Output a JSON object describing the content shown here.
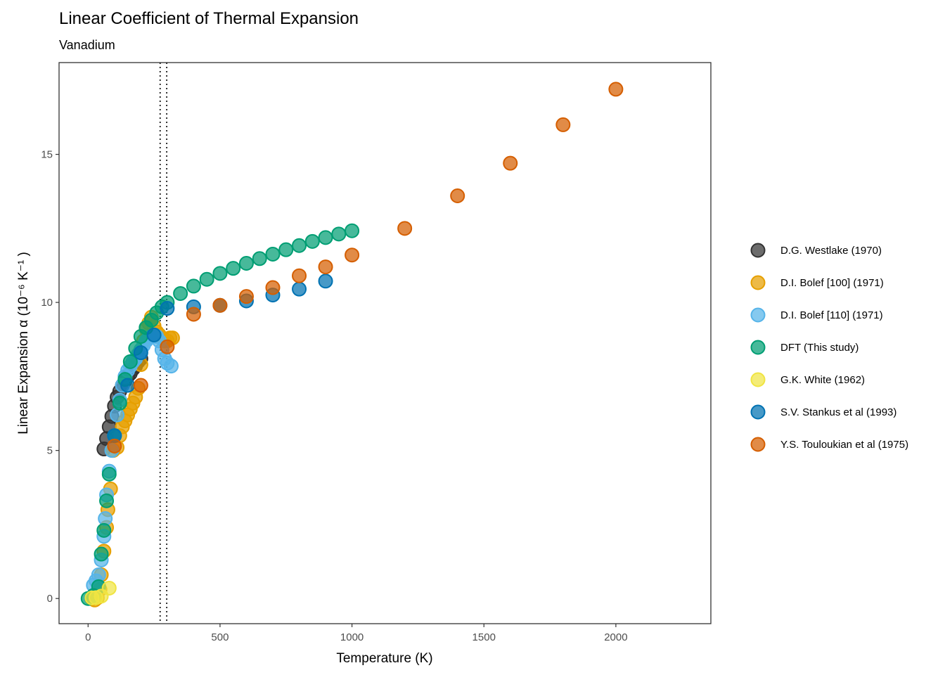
{
  "chart_data": {
    "type": "scatter",
    "title": "Linear Coefficient of Thermal Expansion",
    "subtitle": "Vanadium",
    "xlabel": "Temperature (K)",
    "ylabel": "Linear Expansion  α (10⁻⁶ K⁻¹ )",
    "xlim": [
      -110,
      2360
    ],
    "ylim": [
      -0.85,
      18.1
    ],
    "x_ticks": [
      0,
      500,
      1000,
      1500,
      2000
    ],
    "y_ticks": [
      0,
      5,
      10,
      15
    ],
    "grid": false,
    "legend_position": "right",
    "reference_lines": [
      {
        "x": 273,
        "style": "dotted"
      },
      {
        "x": 298,
        "style": "dotted"
      }
    ],
    "series": [
      {
        "name": "D.G. Westlake (1970)",
        "color": "#333333",
        "points": [
          [
            60,
            5.05
          ],
          [
            70,
            5.4
          ],
          [
            80,
            5.8
          ],
          [
            90,
            6.15
          ],
          [
            100,
            6.5
          ],
          [
            110,
            6.8
          ],
          [
            120,
            7.0
          ],
          [
            130,
            7.2
          ],
          [
            140,
            7.35
          ],
          [
            150,
            7.5
          ],
          [
            160,
            7.6
          ],
          [
            170,
            7.75
          ],
          [
            180,
            7.85
          ],
          [
            190,
            8.0
          ],
          [
            200,
            8.1
          ]
        ]
      },
      {
        "name": "D.I. Bolef [100] (1971)",
        "color": "#E69F00",
        "points": [
          [
            15,
            0.0
          ],
          [
            25,
            -0.05
          ],
          [
            35,
            0.02
          ],
          [
            45,
            0.3
          ],
          [
            50,
            0.8
          ],
          [
            60,
            1.6
          ],
          [
            70,
            2.4
          ],
          [
            75,
            3.0
          ],
          [
            85,
            3.7
          ],
          [
            95,
            5.0
          ],
          [
            110,
            5.1
          ],
          [
            120,
            5.5
          ],
          [
            130,
            5.8
          ],
          [
            140,
            6.0
          ],
          [
            150,
            6.2
          ],
          [
            160,
            6.4
          ],
          [
            170,
            6.6
          ],
          [
            180,
            6.8
          ],
          [
            190,
            7.1
          ],
          [
            200,
            7.9
          ],
          [
            210,
            8.7
          ],
          [
            220,
            9.1
          ],
          [
            230,
            9.3
          ],
          [
            240,
            9.5
          ],
          [
            250,
            9.2
          ],
          [
            260,
            9.0
          ],
          [
            270,
            8.9
          ],
          [
            280,
            8.8
          ],
          [
            290,
            8.7
          ],
          [
            300,
            8.7
          ],
          [
            310,
            8.8
          ],
          [
            320,
            8.8
          ]
        ]
      },
      {
        "name": "D.I. Bolef [110] (1971)",
        "color": "#56B4E9",
        "points": [
          [
            20,
            0.45
          ],
          [
            30,
            0.6
          ],
          [
            40,
            0.8
          ],
          [
            50,
            1.3
          ],
          [
            60,
            2.1
          ],
          [
            65,
            2.7
          ],
          [
            70,
            3.5
          ],
          [
            80,
            4.3
          ],
          [
            90,
            5.0
          ],
          [
            100,
            5.5
          ],
          [
            110,
            6.2
          ],
          [
            120,
            6.7
          ],
          [
            130,
            7.2
          ],
          [
            140,
            7.5
          ],
          [
            150,
            7.7
          ],
          [
            160,
            7.85
          ],
          [
            170,
            8.0
          ],
          [
            180,
            8.1
          ],
          [
            190,
            8.25
          ],
          [
            200,
            8.4
          ],
          [
            210,
            8.55
          ],
          [
            220,
            8.7
          ],
          [
            230,
            8.8
          ],
          [
            240,
            8.85
          ],
          [
            250,
            8.9
          ],
          [
            260,
            8.85
          ],
          [
            270,
            8.7
          ],
          [
            280,
            8.4
          ],
          [
            290,
            8.1
          ],
          [
            300,
            7.95
          ],
          [
            315,
            7.85
          ]
        ]
      },
      {
        "name": "DFT (This study)",
        "color": "#009E73",
        "points": [
          [
            0,
            0.0
          ],
          [
            20,
            0.1
          ],
          [
            40,
            0.4
          ],
          [
            50,
            1.5
          ],
          [
            60,
            2.3
          ],
          [
            70,
            3.3
          ],
          [
            80,
            4.2
          ],
          [
            100,
            5.5
          ],
          [
            120,
            6.6
          ],
          [
            140,
            7.4
          ],
          [
            160,
            8.0
          ],
          [
            180,
            8.45
          ],
          [
            200,
            8.85
          ],
          [
            220,
            9.15
          ],
          [
            240,
            9.4
          ],
          [
            260,
            9.65
          ],
          [
            280,
            9.85
          ],
          [
            300,
            10.0
          ],
          [
            350,
            10.3
          ],
          [
            400,
            10.55
          ],
          [
            450,
            10.78
          ],
          [
            500,
            10.98
          ],
          [
            550,
            11.15
          ],
          [
            600,
            11.32
          ],
          [
            650,
            11.48
          ],
          [
            700,
            11.63
          ],
          [
            750,
            11.78
          ],
          [
            800,
            11.92
          ],
          [
            850,
            12.06
          ],
          [
            900,
            12.19
          ],
          [
            950,
            12.31
          ],
          [
            1000,
            12.42
          ]
        ]
      },
      {
        "name": "G.K. White (1962)",
        "color": "#F0E442",
        "points": [
          [
            15,
            0.02
          ],
          [
            30,
            0.03
          ],
          [
            50,
            0.08
          ],
          [
            80,
            0.35
          ]
        ]
      },
      {
        "name": "S.V. Stankus et al (1993)",
        "color": "#0072B2",
        "points": [
          [
            100,
            5.5
          ],
          [
            150,
            7.2
          ],
          [
            200,
            8.3
          ],
          [
            250,
            8.9
          ],
          [
            300,
            9.8
          ],
          [
            400,
            9.85
          ],
          [
            500,
            9.9
          ],
          [
            600,
            10.05
          ],
          [
            700,
            10.25
          ],
          [
            800,
            10.45
          ],
          [
            900,
            10.72
          ]
        ]
      },
      {
        "name": "Y.S. Touloukian et al (1975)",
        "color": "#D55E00",
        "points": [
          [
            100,
            5.15
          ],
          [
            200,
            7.2
          ],
          [
            300,
            8.5
          ],
          [
            400,
            9.6
          ],
          [
            500,
            9.9
          ],
          [
            600,
            10.2
          ],
          [
            700,
            10.5
          ],
          [
            800,
            10.9
          ],
          [
            900,
            11.2
          ],
          [
            1000,
            11.6
          ],
          [
            1200,
            12.5
          ],
          [
            1400,
            13.6
          ],
          [
            1600,
            14.7
          ],
          [
            1800,
            16.0
          ],
          [
            2000,
            17.2
          ]
        ]
      }
    ]
  }
}
